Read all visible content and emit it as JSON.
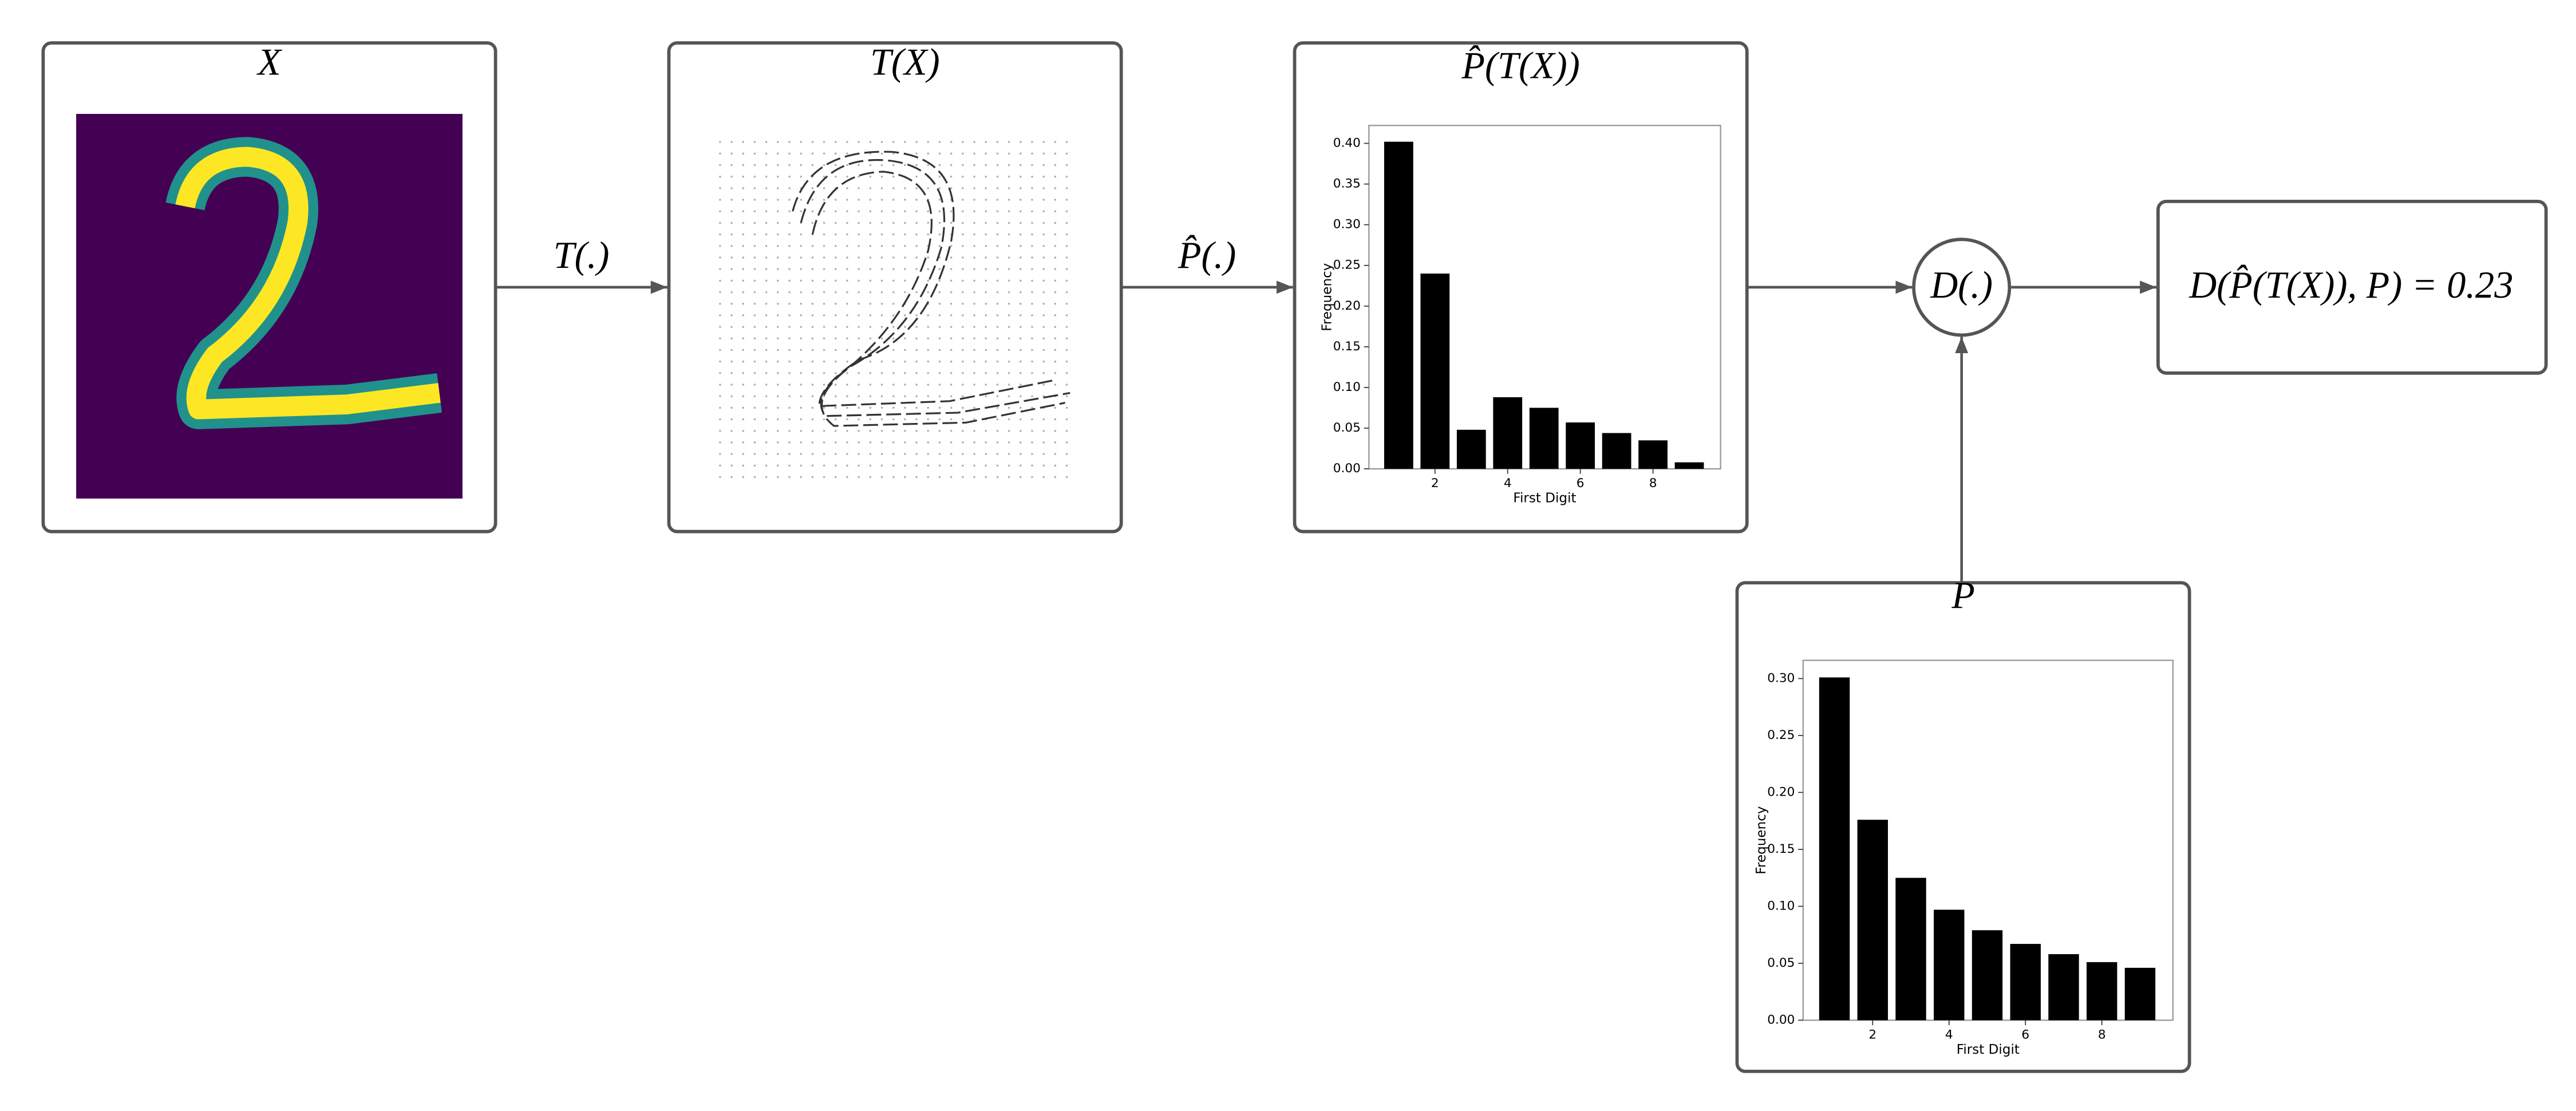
{
  "nodes": [
    {
      "label": "X"
    },
    {
      "label": "T(X)"
    },
    {
      "label": "P̂(T(X))",
      "chart": {
        "type": "bar",
        "x": [
          1,
          2,
          3,
          4,
          5,
          6,
          7,
          8,
          9
        ],
        "values": [
          0.402,
          0.24,
          0.048,
          0.088,
          0.075,
          0.057,
          0.044,
          0.035,
          0.008
        ],
        "color": "#000000",
        "xlim": [
          0.18,
          9.86
        ],
        "ylim": [
          0,
          0.422
        ],
        "xticks": [
          2,
          4,
          6,
          8
        ],
        "yticks": [
          {
            "value": 0,
            "label": "0.00"
          },
          {
            "value": 0.05,
            "label": "0.05"
          },
          {
            "value": 0.1,
            "label": "0.10"
          },
          {
            "value": 0.15,
            "label": "0.15"
          },
          {
            "value": 0.2,
            "label": "0.20"
          },
          {
            "value": 0.25,
            "label": "0.25"
          },
          {
            "value": 0.3,
            "label": "0.30"
          },
          {
            "value": 0.35,
            "label": "0.35"
          },
          {
            "value": 0.4,
            "label": "0.40"
          }
        ],
        "xlabel": "First Digit",
        "ylabel": "Frequency"
      }
    },
    {
      "label": "D(.)"
    },
    {
      "label": "D(P̂(T(X)), P) = 0.23"
    },
    {
      "label": "P",
      "chart": {
        "type": "bar",
        "x": [
          1,
          2,
          3,
          4,
          5,
          6,
          7,
          8,
          9
        ],
        "values": [
          0.301,
          0.176,
          0.125,
          0.097,
          0.079,
          0.067,
          0.058,
          0.051,
          0.046
        ],
        "color": "#000000",
        "xlim": [
          0.18,
          9.86
        ],
        "ylim": [
          0,
          0.316
        ],
        "xticks": [
          2,
          4,
          6,
          8
        ],
        "yticks": [
          {
            "value": 0,
            "label": "0.00"
          },
          {
            "value": 0.05,
            "label": "0.05"
          },
          {
            "value": 0.1,
            "label": "0.10"
          },
          {
            "value": 0.15,
            "label": "0.15"
          },
          {
            "value": 0.2,
            "label": "0.20"
          },
          {
            "value": 0.25,
            "label": "0.25"
          },
          {
            "value": 0.3,
            "label": "0.30"
          }
        ],
        "xlabel": "First Digit",
        "ylabel": "Frequency"
      }
    }
  ],
  "edges": [
    {
      "label": "T(.)"
    },
    {
      "label": "P̂(.)"
    }
  ]
}
